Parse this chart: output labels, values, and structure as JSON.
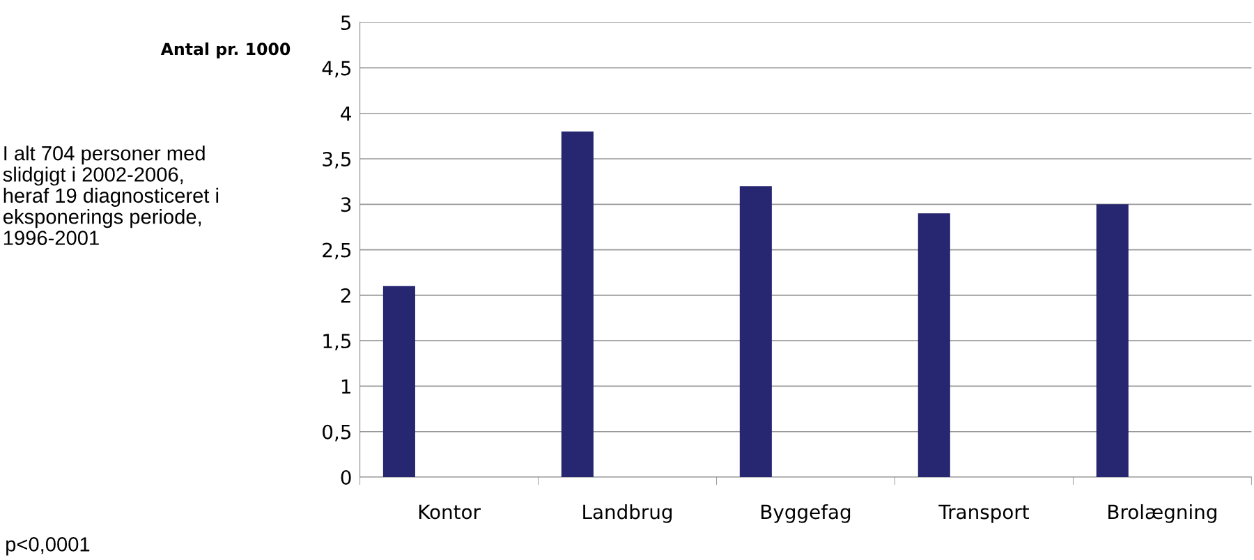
{
  "chart_data": {
    "type": "bar",
    "ylabel": "Antal pr. 1000",
    "categories": [
      "Kontor",
      "Landbrug",
      "Byggefag",
      "Transport",
      "Brolægning"
    ],
    "values": [
      2.1,
      3.8,
      3.2,
      2.9,
      3.0
    ],
    "color": "#262671",
    "ylim": [
      0,
      5
    ],
    "yticks": [
      0,
      {
        "value": 0.5,
        "label": "0,5"
      },
      1,
      {
        "value": 1.5,
        "label": "1,5"
      },
      2,
      {
        "value": 2.5,
        "label": "2,5"
      },
      3,
      {
        "value": 3.5,
        "label": "3,5"
      },
      4,
      {
        "value": 4.5,
        "label": "4,5"
      },
      5
    ],
    "grid": "y",
    "annotations": [
      "I alt 704 personer med slidgigt i 2002-2006, heraf 19 diagnosticeret i eksponerings periode, 1996-2001",
      "p<0,0001"
    ]
  }
}
